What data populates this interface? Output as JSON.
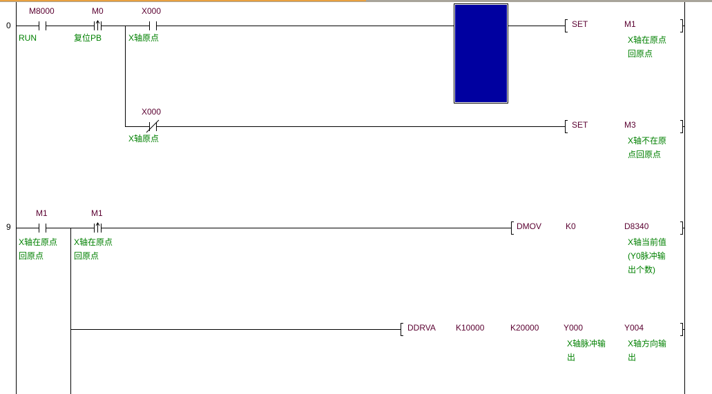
{
  "editor": {
    "cursor_color": "#0000a0",
    "comment_color": "#008000",
    "device_color": "#5a0030"
  },
  "rungs": [
    {
      "step": "0",
      "contacts": [
        {
          "device": "M8000",
          "type": "normally-open",
          "comment": "RUN"
        },
        {
          "device": "M0",
          "type": "rising-edge",
          "comment": "复位PB"
        },
        {
          "device": "X000",
          "type": "normally-open",
          "comment": "X轴原点"
        }
      ],
      "instruction": {
        "op": "SET",
        "operands": [
          "M1"
        ],
        "comment": "X轴在原点\n回原点"
      },
      "branch": {
        "contact": {
          "device": "X000",
          "type": "normally-closed",
          "comment": "X轴原点"
        },
        "instruction": {
          "op": "SET",
          "operands": [
            "M3"
          ],
          "comment": "X轴不在原\n点回原点"
        }
      }
    },
    {
      "step": "9",
      "contacts": [
        {
          "device": "M1",
          "type": "normally-open",
          "comment": "X轴在原点\n回原点"
        },
        {
          "device": "M1",
          "type": "rising-edge",
          "comment": "X轴在原点\n回原点"
        }
      ],
      "instruction": {
        "op": "DMOV",
        "operands": [
          "K0",
          "D8340"
        ],
        "comment": "X轴当前值\n(Y0脉冲输\n出个数)"
      },
      "branch": {
        "instruction": {
          "op": "DDRVA",
          "operands": [
            "K10000",
            "K20000",
            "Y000",
            "Y004"
          ],
          "comments": [
            "X轴脉冲输\n出",
            "X轴方向输\n出"
          ]
        }
      }
    }
  ]
}
